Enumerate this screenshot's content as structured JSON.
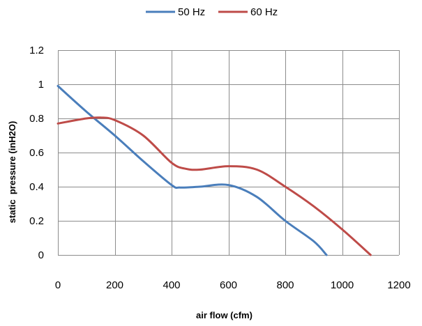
{
  "chart_data": {
    "type": "line",
    "title": "",
    "xlabel": "air flow (cfm)",
    "ylabel": "static  pressure (inH2O)",
    "xlim": [
      0,
      1200
    ],
    "ylim": [
      0,
      1.2
    ],
    "xticks": [
      "0",
      "200",
      "400",
      "600",
      "800",
      "1000",
      "1200"
    ],
    "yticks": [
      "0",
      "0.2",
      "0.4",
      "0.6",
      "0.8",
      "1",
      "1.2"
    ],
    "grid": true,
    "legend_position": "top",
    "series": [
      {
        "name": "50 Hz",
        "color": "#4a7ebb",
        "x": [
          0,
          100,
          200,
          300,
          400,
          430,
          500,
          600,
          700,
          800,
          900,
          945
        ],
        "y": [
          0.99,
          0.84,
          0.7,
          0.55,
          0.41,
          0.395,
          0.4,
          0.41,
          0.34,
          0.2,
          0.08,
          0.0
        ]
      },
      {
        "name": "60 Hz",
        "color": "#be4b48",
        "x": [
          0,
          100,
          150,
          200,
          300,
          400,
          450,
          500,
          600,
          700,
          800,
          900,
          1000,
          1100
        ],
        "y": [
          0.77,
          0.8,
          0.805,
          0.79,
          0.7,
          0.54,
          0.505,
          0.5,
          0.52,
          0.5,
          0.4,
          0.285,
          0.15,
          0.0
        ]
      }
    ]
  }
}
